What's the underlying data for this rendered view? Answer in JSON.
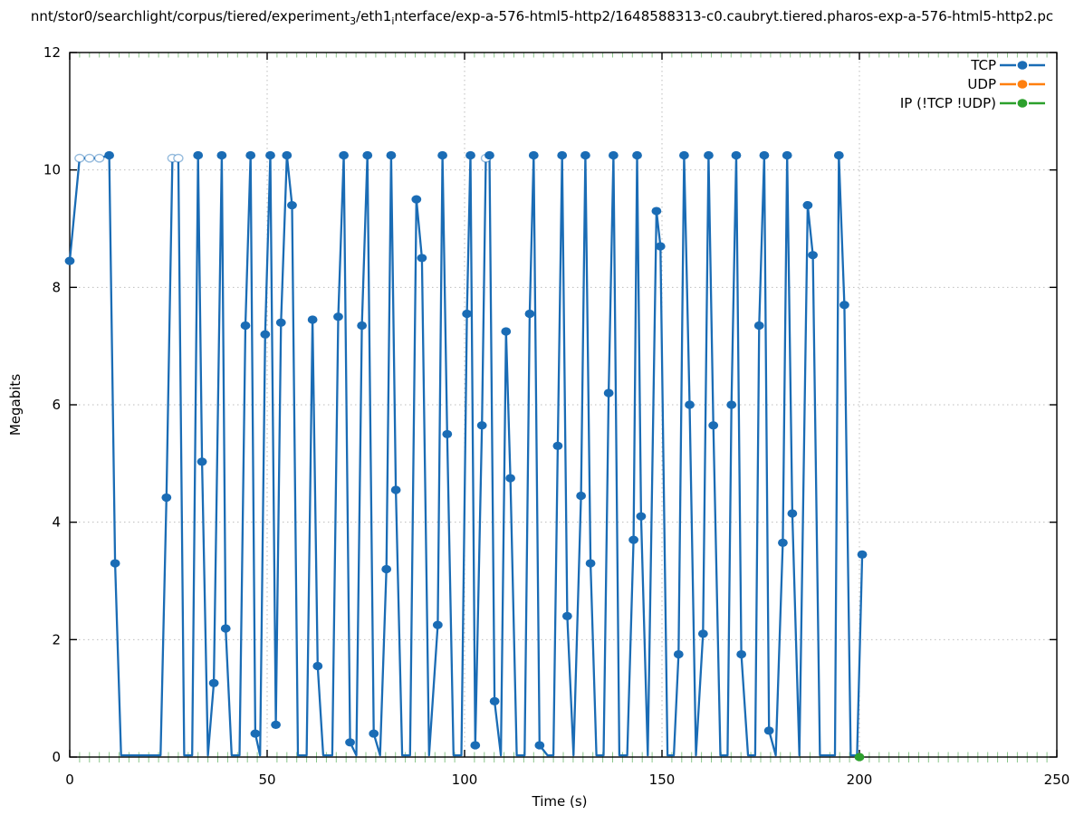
{
  "title": {
    "part1": "nnt/stor0/searchlight/corpus/tiered/experiment",
    "sub1": "3",
    "part2": "/eth1",
    "sub2": "i",
    "part3": "nterface/exp-a-576-html5-http2/1648588313-c0.caubryt.tiered.pharos-exp-a-576-html5-http2.pc"
  },
  "axes": {
    "x_label": "Time (s)",
    "y_label": "Megabits"
  },
  "legend": [
    {
      "label": "TCP",
      "color": "#1a6cb5"
    },
    {
      "label": "UDP",
      "color": "#ff7f0e"
    },
    {
      "label": "IP (!TCP  !UDP)",
      "color": "#2ca02c"
    }
  ],
  "chart_data": {
    "type": "line",
    "title": "packet capture throughput over time",
    "xlabel": "Time (s)",
    "ylabel": "Megabits",
    "xlim": [
      0,
      250
    ],
    "ylim": [
      0,
      12
    ],
    "x_ticks": [
      0,
      50,
      100,
      150,
      200,
      250
    ],
    "y_ticks": [
      0,
      2,
      4,
      6,
      8,
      10,
      12
    ],
    "minor_x_tick_step": 2.5,
    "grid": true,
    "legend_position": "top-right-inside",
    "colors": {
      "grid": "#bdbdbd",
      "minor_tick": "#8cc88c",
      "border": "#000000"
    },
    "marker_note": "flag 0 = line vertex only, 1 = filled dot, 2 = faint open dot",
    "series": [
      {
        "name": "TCP",
        "color": "#1a6cb5",
        "points": [
          [
            0,
            8.45,
            1
          ],
          [
            2.5,
            10.2,
            2
          ],
          [
            5,
            10.2,
            2
          ],
          [
            7.5,
            10.2,
            2
          ],
          [
            10,
            10.25,
            1
          ],
          [
            11.5,
            3.3,
            1
          ],
          [
            13,
            0.03,
            0
          ],
          [
            15.5,
            0.03,
            0
          ],
          [
            18,
            0.03,
            0
          ],
          [
            20.5,
            0.03,
            0
          ],
          [
            23,
            0.03,
            0
          ],
          [
            24.5,
            4.42,
            1
          ],
          [
            26,
            10.2,
            2
          ],
          [
            27.5,
            10.2,
            2
          ],
          [
            29,
            0.03,
            0
          ],
          [
            31,
            0.03,
            0
          ],
          [
            32.5,
            10.25,
            1
          ],
          [
            33.5,
            5.03,
            1
          ],
          [
            35,
            0.03,
            0
          ],
          [
            36.5,
            1.26,
            1
          ],
          [
            38.5,
            10.25,
            1
          ],
          [
            39.5,
            2.19,
            1
          ],
          [
            41,
            0.03,
            0
          ],
          [
            43,
            0.03,
            0
          ],
          [
            44.5,
            7.35,
            1
          ],
          [
            45.8,
            10.25,
            1
          ],
          [
            47,
            0.4,
            1
          ],
          [
            48.2,
            0.03,
            0
          ],
          [
            49.5,
            7.2,
            1
          ],
          [
            50.8,
            10.25,
            1
          ],
          [
            52.2,
            0.55,
            1
          ],
          [
            53.5,
            7.4,
            1
          ],
          [
            55,
            10.25,
            1
          ],
          [
            56.3,
            9.4,
            1
          ],
          [
            57.8,
            0.03,
            0
          ],
          [
            60,
            0.03,
            0
          ],
          [
            61.5,
            7.45,
            1
          ],
          [
            62.8,
            1.55,
            1
          ],
          [
            64.2,
            0.03,
            0
          ],
          [
            66.5,
            0.03,
            0
          ],
          [
            68,
            7.5,
            1
          ],
          [
            69.4,
            10.25,
            1
          ],
          [
            71,
            0.25,
            1
          ],
          [
            72.6,
            0.03,
            0
          ],
          [
            74,
            7.35,
            1
          ],
          [
            75.4,
            10.25,
            1
          ],
          [
            77,
            0.4,
            1
          ],
          [
            78.6,
            0.03,
            0
          ],
          [
            80.2,
            3.2,
            1
          ],
          [
            81.4,
            10.25,
            1
          ],
          [
            82.6,
            4.55,
            1
          ],
          [
            84.2,
            0.03,
            0
          ],
          [
            86.2,
            0.03,
            0
          ],
          [
            87.8,
            9.5,
            1
          ],
          [
            89.2,
            8.5,
            1
          ],
          [
            91,
            0.03,
            0
          ],
          [
            93.2,
            2.25,
            1
          ],
          [
            94.4,
            10.25,
            1
          ],
          [
            95.6,
            5.5,
            1
          ],
          [
            97.2,
            0.03,
            0
          ],
          [
            99.2,
            0.03,
            0
          ],
          [
            100.6,
            7.55,
            1
          ],
          [
            101.5,
            10.25,
            1
          ],
          [
            102.7,
            0.2,
            1
          ],
          [
            104.4,
            5.65,
            1
          ],
          [
            105.4,
            10.2,
            2
          ],
          [
            106.3,
            10.25,
            1
          ],
          [
            107.6,
            0.95,
            1
          ],
          [
            109.2,
            0.03,
            0
          ],
          [
            110.5,
            7.25,
            1
          ],
          [
            111.6,
            4.75,
            1
          ],
          [
            113.2,
            0.03,
            0
          ],
          [
            115.2,
            0.03,
            0
          ],
          [
            116.5,
            7.55,
            1
          ],
          [
            117.5,
            10.25,
            1
          ],
          [
            119,
            0.2,
            1
          ],
          [
            121,
            0.03,
            0
          ],
          [
            122.5,
            0.03,
            0
          ],
          [
            123.6,
            5.3,
            1
          ],
          [
            124.7,
            10.25,
            1
          ],
          [
            126,
            2.4,
            1
          ],
          [
            127.6,
            0.03,
            0
          ],
          [
            129.5,
            4.45,
            1
          ],
          [
            130.6,
            10.25,
            1
          ],
          [
            131.9,
            3.3,
            1
          ],
          [
            133.4,
            0.03,
            0
          ],
          [
            135.2,
            0.03,
            0
          ],
          [
            136.5,
            6.2,
            1
          ],
          [
            137.7,
            10.25,
            1
          ],
          [
            139.2,
            0.03,
            0
          ],
          [
            141.2,
            0.03,
            0
          ],
          [
            142.8,
            3.7,
            1
          ],
          [
            143.7,
            10.25,
            1
          ],
          [
            144.7,
            4.1,
            1
          ],
          [
            146.4,
            0.03,
            0
          ],
          [
            148.6,
            9.3,
            1
          ],
          [
            149.6,
            8.7,
            1
          ],
          [
            151.4,
            0.03,
            0
          ],
          [
            153,
            0.03,
            0
          ],
          [
            154.2,
            1.75,
            1
          ],
          [
            155.6,
            10.25,
            1
          ],
          [
            157,
            6.0,
            1
          ],
          [
            158.6,
            0.03,
            0
          ],
          [
            160.4,
            2.1,
            1
          ],
          [
            161.8,
            10.25,
            1
          ],
          [
            163,
            5.65,
            1
          ],
          [
            164.8,
            0.03,
            0
          ],
          [
            166.6,
            0.03,
            0
          ],
          [
            167.6,
            6.0,
            1
          ],
          [
            168.8,
            10.25,
            1
          ],
          [
            170.1,
            1.75,
            1
          ],
          [
            171.8,
            0.03,
            0
          ],
          [
            173.6,
            0.03,
            0
          ],
          [
            174.6,
            7.35,
            1
          ],
          [
            175.9,
            10.25,
            1
          ],
          [
            177.1,
            0.45,
            1
          ],
          [
            178.8,
            0.03,
            0
          ],
          [
            180.6,
            3.65,
            1
          ],
          [
            181.7,
            10.25,
            1
          ],
          [
            183,
            4.15,
            1
          ],
          [
            184.8,
            0.03,
            0
          ],
          [
            186.9,
            9.4,
            1
          ],
          [
            188.2,
            8.55,
            1
          ],
          [
            190,
            0.03,
            0
          ],
          [
            192.2,
            0.03,
            0
          ],
          [
            193.8,
            0.03,
            0
          ],
          [
            194.8,
            10.25,
            1
          ],
          [
            196.2,
            7.7,
            1
          ],
          [
            197.8,
            0.03,
            0
          ],
          [
            199.4,
            0.03,
            0
          ],
          [
            200.7,
            3.45,
            1
          ]
        ]
      },
      {
        "name": "UDP",
        "color": "#ff7f0e",
        "points": []
      },
      {
        "name": "IP (!TCP  !UDP)",
        "color": "#2ca02c",
        "points": [
          [
            200,
            0,
            1
          ]
        ]
      }
    ]
  }
}
